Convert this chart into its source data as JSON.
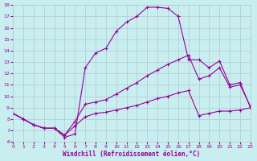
{
  "xlabel": "Windchill (Refroidissement éolien,°C)",
  "xlim": [
    0,
    23
  ],
  "ylim": [
    6,
    18
  ],
  "xticks": [
    0,
    1,
    2,
    3,
    4,
    5,
    6,
    7,
    8,
    9,
    10,
    11,
    12,
    13,
    14,
    15,
    16,
    17,
    18,
    19,
    20,
    21,
    22,
    23
  ],
  "yticks": [
    6,
    7,
    8,
    9,
    10,
    11,
    12,
    13,
    14,
    15,
    16,
    17,
    18
  ],
  "bg_color": "#c8eef0",
  "grid_color": "#b0c8d0",
  "line_color": "#990099",
  "line1_x": [
    0,
    1,
    2,
    3,
    4,
    5,
    6,
    7,
    8,
    9,
    10,
    11,
    12,
    13,
    14,
    15,
    16,
    17,
    18,
    19,
    20,
    21,
    22,
    23
  ],
  "line1_y": [
    8.5,
    8.0,
    7.5,
    7.2,
    7.2,
    6.4,
    6.7,
    12.5,
    13.8,
    14.2,
    15.7,
    16.5,
    17.0,
    17.8,
    17.8,
    17.7,
    17.0,
    13.2,
    13.2,
    12.5,
    13.1,
    11.0,
    11.2,
    9.0
  ],
  "line2_x": [
    0,
    1,
    2,
    3,
    4,
    5,
    6,
    7,
    8,
    9,
    10,
    11,
    12,
    13,
    14,
    15,
    16,
    17,
    18,
    19,
    20,
    21,
    22,
    23
  ],
  "line2_y": [
    8.5,
    8.0,
    7.5,
    7.2,
    7.2,
    6.6,
    7.8,
    9.3,
    9.5,
    9.7,
    10.2,
    10.7,
    11.2,
    11.8,
    12.3,
    12.8,
    13.2,
    13.6,
    11.5,
    11.8,
    12.5,
    10.8,
    11.0,
    9.1
  ],
  "line3_x": [
    0,
    1,
    2,
    3,
    4,
    5,
    6,
    7,
    8,
    9,
    10,
    11,
    12,
    13,
    14,
    15,
    16,
    17,
    18,
    19,
    20,
    21,
    22,
    23
  ],
  "line3_y": [
    8.5,
    8.0,
    7.5,
    7.2,
    7.2,
    6.6,
    7.4,
    8.2,
    8.5,
    8.6,
    8.8,
    9.0,
    9.2,
    9.5,
    9.8,
    10.0,
    10.3,
    10.5,
    8.3,
    8.5,
    8.7,
    8.7,
    8.8,
    9.0
  ]
}
